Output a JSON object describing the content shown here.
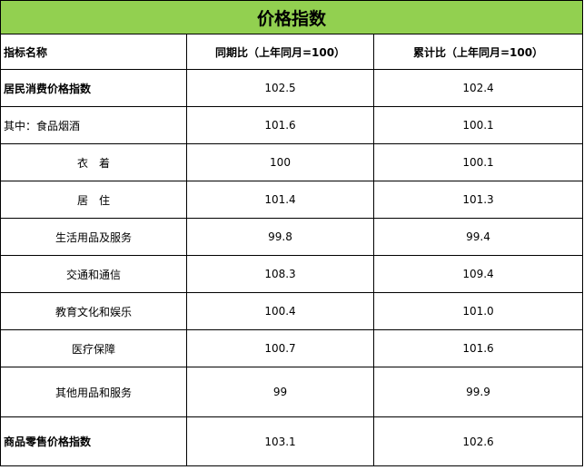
{
  "title": "价格指数",
  "header": {
    "col_name": "指标名称",
    "col_yoy": "同期比（上年同月=100）",
    "col_cum": "累计比（上年同月=100）"
  },
  "rows": [
    {
      "name": "居民消费价格指数",
      "yoy": "102.5",
      "cum": "102.4"
    },
    {
      "name": "其中：食品烟酒",
      "yoy": "101.6",
      "cum": "100.1"
    },
    {
      "name": "衣　着",
      "yoy": "100",
      "cum": "100.1"
    },
    {
      "name": "居　住",
      "yoy": "101.4",
      "cum": "101.3"
    },
    {
      "name": "生活用品及服务",
      "yoy": "99.8",
      "cum": "99.4"
    },
    {
      "name": "交通和通信",
      "yoy": "108.3",
      "cum": "109.4"
    },
    {
      "name": "教育文化和娱乐",
      "yoy": "100.4",
      "cum": "101.0"
    },
    {
      "name": "医疗保障",
      "yoy": "100.7",
      "cum": "101.6"
    },
    {
      "name": "其他用品和服务",
      "yoy": "99",
      "cum": "99.9"
    },
    {
      "name": "商品零售价格指数",
      "yoy": "103.1",
      "cum": "102.6"
    }
  ]
}
